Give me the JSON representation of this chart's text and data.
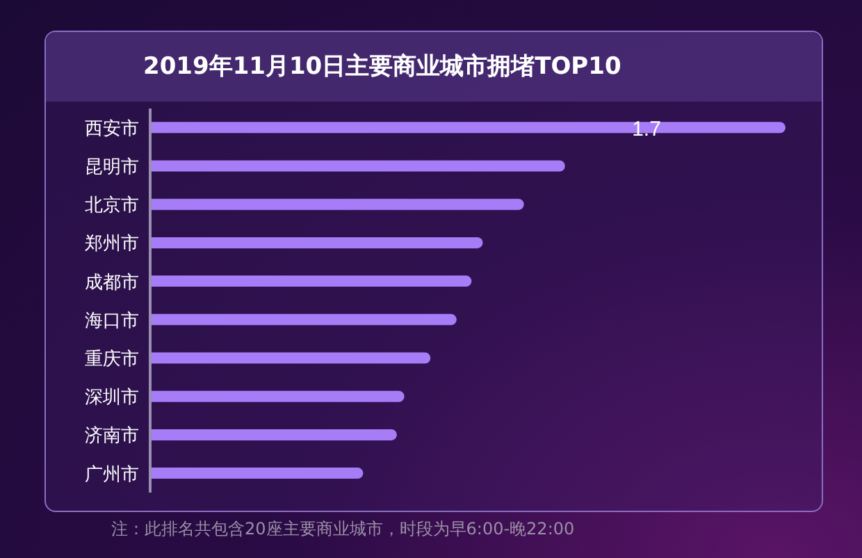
{
  "chart_data": {
    "type": "bar",
    "orientation": "horizontal",
    "title": "2019年11月10日主要商业城市拥堵TOP10",
    "categories": [
      "西安市",
      "昆明市",
      "北京市",
      "郑州市",
      "成都市",
      "海口市",
      "重庆市",
      "深圳市",
      "济南市",
      "广州市"
    ],
    "values": [
      1.7,
      1.11,
      1.0,
      0.89,
      0.86,
      0.82,
      0.75,
      0.68,
      0.66,
      0.57
    ],
    "value_labels": [
      "1.7",
      null,
      null,
      null,
      null,
      null,
      null,
      null,
      null,
      null
    ],
    "color": "#a77cf7",
    "annotations": [
      "注：此排名共包含20座主要商业城市，时段为早6:00-晚22:00"
    ]
  }
}
